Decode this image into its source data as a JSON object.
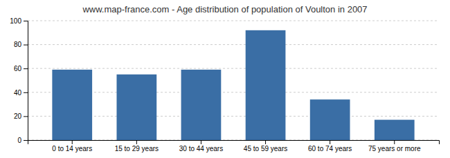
{
  "chart_data": {
    "type": "bar",
    "title": "www.map-france.com - Age distribution of population of Voulton in 2007",
    "categories": [
      "0 to 14 years",
      "15 to 29 years",
      "30 to 44 years",
      "45 to 59 years",
      "60 to 74 years",
      "75 years or more"
    ],
    "values": [
      59,
      55,
      59,
      92,
      34,
      17
    ],
    "color": "#3a6ea5",
    "ylim": [
      0,
      100
    ],
    "yticks": [
      0,
      20,
      40,
      60,
      80,
      100
    ],
    "grid": true
  }
}
